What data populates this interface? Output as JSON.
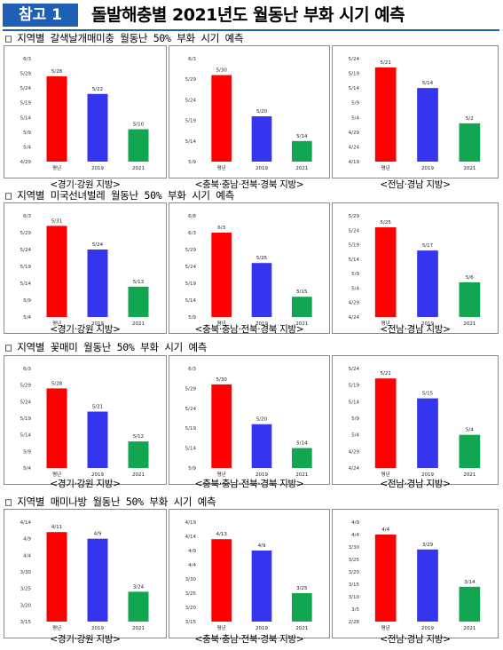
{
  "header": {
    "badge": "참고 1",
    "title": "돌발해충별 2021년도 월동난 부화 시기 예측"
  },
  "sections": [
    {
      "title": "□ 지역별 갈색날개매미충 월동난 50% 부화 시기 예측"
    },
    {
      "title": "□ 지역별 미국선녀벌레 월동난 50% 부화 시기 예측"
    },
    {
      "title": "□ 지역별 꽃매미 월동난 50% 부화 시기 예측"
    },
    {
      "title": "□ 지역별 매미나방 월동난 50% 부화 시기 예측"
    }
  ],
  "colors": {
    "평년": "#ff0000",
    "2019": "#3535f0",
    "2021": "#13a650"
  },
  "chart_data": [
    {
      "type": "bar",
      "section": 0,
      "region": "<경기·강원 지방>",
      "categories": [
        "평년",
        "2019",
        "2021"
      ],
      "values": [
        "5/28",
        "5/22",
        "5/10"
      ],
      "yticks": [
        "4/29",
        "5/4",
        "5/9",
        "5/14",
        "5/19",
        "5/24",
        "5/29",
        "6/3"
      ]
    },
    {
      "type": "bar",
      "section": 0,
      "region": "<충북·충남·전북·경북 지방>",
      "categories": [
        "평년",
        "2019",
        "2021"
      ],
      "values": [
        "5/30",
        "5/20",
        "5/14"
      ],
      "yticks": [
        "5/9",
        "5/14",
        "5/19",
        "5/24",
        "5/29",
        "6/3"
      ]
    },
    {
      "type": "bar",
      "section": 0,
      "region": "<전남·경남 지방>",
      "categories": [
        "평년",
        "2019",
        "2021"
      ],
      "values": [
        "5/21",
        "5/14",
        "5/2"
      ],
      "yticks": [
        "4/19",
        "4/24",
        "4/29",
        "5/4",
        "5/9",
        "5/14",
        "5/19",
        "5/24"
      ]
    },
    {
      "type": "bar",
      "section": 1,
      "region": "<경기·강원 지방>",
      "categories": [
        "평년",
        "2019",
        "2021"
      ],
      "values": [
        "5/31",
        "5/24",
        "5/13"
      ],
      "yticks": [
        "5/4",
        "5/9",
        "5/14",
        "5/19",
        "5/24",
        "5/29",
        "6/3"
      ]
    },
    {
      "type": "bar",
      "section": 1,
      "region": "<충북·충남·전북·경북 지방>",
      "categories": [
        "평년",
        "2019",
        "2021"
      ],
      "values": [
        "6/3",
        "5/25",
        "5/15"
      ],
      "yticks": [
        "5/9",
        "5/14",
        "5/19",
        "5/24",
        "5/29",
        "6/3",
        "6/8"
      ]
    },
    {
      "type": "bar",
      "section": 1,
      "region": "<전남·경남 지방>",
      "categories": [
        "평년",
        "2019",
        "2021"
      ],
      "values": [
        "5/25",
        "5/17",
        "5/6"
      ],
      "yticks": [
        "4/24",
        "4/29",
        "5/4",
        "5/9",
        "5/14",
        "5/19",
        "5/24",
        "5/29"
      ]
    },
    {
      "type": "bar",
      "section": 2,
      "region": "<경기·강원 지방>",
      "categories": [
        "평년",
        "2019",
        "2021"
      ],
      "values": [
        "5/28",
        "5/21",
        "5/12"
      ],
      "yticks": [
        "5/4",
        "5/9",
        "5/14",
        "5/19",
        "5/24",
        "5/29",
        "6/3"
      ]
    },
    {
      "type": "bar",
      "section": 2,
      "region": "<충북·충남·전북·경북 지방>",
      "categories": [
        "평년",
        "2019",
        "2021"
      ],
      "values": [
        "5/30",
        "5/20",
        "5/14"
      ],
      "yticks": [
        "5/9",
        "5/14",
        "5/19",
        "5/24",
        "5/29",
        "6/3"
      ]
    },
    {
      "type": "bar",
      "section": 2,
      "region": "<전남·경남 지방>",
      "categories": [
        "평년",
        "2019",
        "2021"
      ],
      "values": [
        "5/21",
        "5/15",
        "5/4"
      ],
      "yticks": [
        "4/24",
        "4/29",
        "5/4",
        "5/9",
        "5/14",
        "5/19",
        "5/24"
      ]
    },
    {
      "type": "bar",
      "section": 3,
      "region": "<경기·강원 지방>",
      "categories": [
        "평년",
        "2019",
        "2021"
      ],
      "values": [
        "4/11",
        "4/9",
        "3/24"
      ],
      "yticks": [
        "3/15",
        "3/20",
        "3/25",
        "3/30",
        "4/4",
        "4/9",
        "4/14"
      ]
    },
    {
      "type": "bar",
      "section": 3,
      "region": "<충북·충남·전북·경북 지방>",
      "categories": [
        "평년",
        "2019",
        "2021"
      ],
      "values": [
        "4/13",
        "4/9",
        "3/25"
      ],
      "yticks": [
        "3/15",
        "3/20",
        "3/25",
        "3/30",
        "4/4",
        "4/9",
        "4/14",
        "4/19"
      ]
    },
    {
      "type": "bar",
      "section": 3,
      "region": "<전남·경남 지방>",
      "categories": [
        "평년",
        "2019",
        "2021"
      ],
      "values": [
        "4/4",
        "3/29",
        "3/14"
      ],
      "yticks": [
        "2/28",
        "3/5",
        "3/10",
        "3/15",
        "3/20",
        "3/25",
        "3/30",
        "4/4",
        "4/9"
      ]
    }
  ]
}
